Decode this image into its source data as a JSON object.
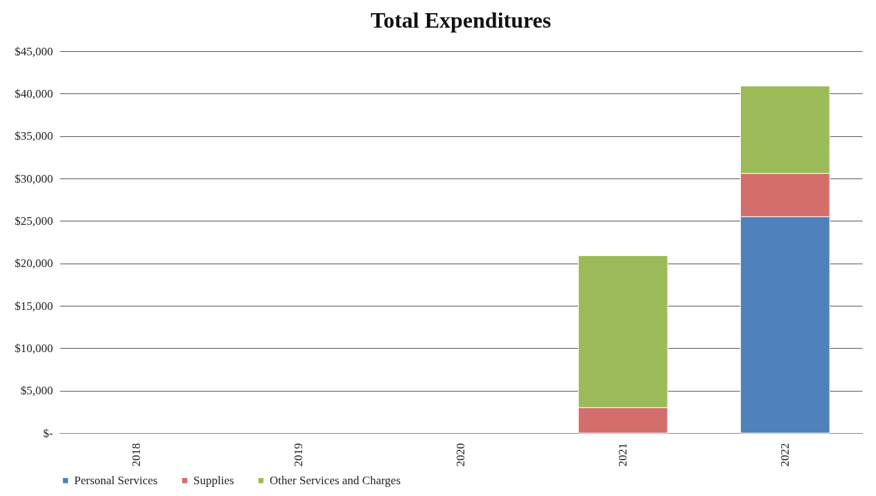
{
  "chart_data": {
    "type": "bar",
    "title": "Total Expenditures",
    "categories": [
      "2018",
      "2019",
      "2020",
      "2021",
      "2022"
    ],
    "series": [
      {
        "name": "Personal Services",
        "color": "#4f81bd",
        "values": [
          null,
          null,
          null,
          null,
          25500
        ]
      },
      {
        "name": "Supplies",
        "color": "#d46e6b",
        "values": [
          null,
          null,
          null,
          3000,
          5100
        ]
      },
      {
        "name": "Other Services and Charges",
        "color": "#9bbb59",
        "values": [
          null,
          null,
          null,
          17900,
          10300
        ]
      }
    ],
    "stacked": true,
    "ylim": [
      0,
      45000
    ],
    "yticks": [
      {
        "value": 0,
        "label": "$-"
      },
      {
        "value": 5000,
        "label": "$5,000"
      },
      {
        "value": 10000,
        "label": "$10,000"
      },
      {
        "value": 15000,
        "label": "$15,000"
      },
      {
        "value": 20000,
        "label": "$20,000"
      },
      {
        "value": 25000,
        "label": "$25,000"
      },
      {
        "value": 30000,
        "label": "$30,000"
      },
      {
        "value": 35000,
        "label": "$35,000"
      },
      {
        "value": 40000,
        "label": "$40,000"
      },
      {
        "value": 45000,
        "label": "$45,000"
      }
    ],
    "grid": "y",
    "legend": "bottom"
  }
}
